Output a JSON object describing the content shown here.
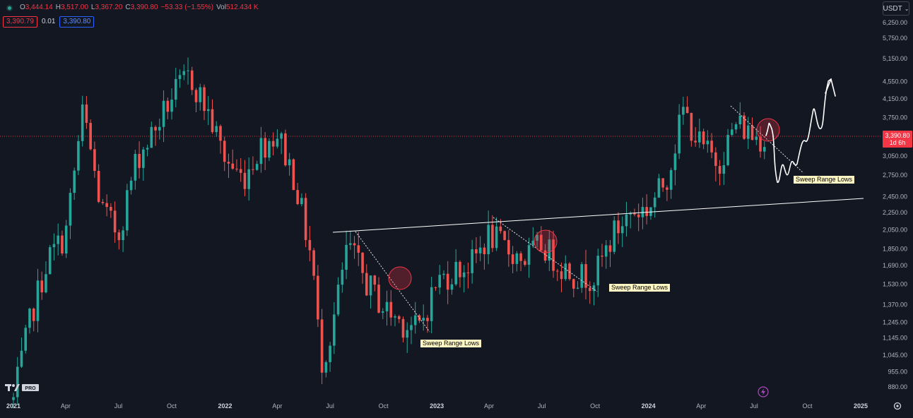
{
  "legend": {
    "open_label": "O",
    "open": "3,444.14",
    "high_label": "H",
    "high": "3,517.00",
    "low_label": "L",
    "low": "3,367.20",
    "close_label": "C",
    "close": "3,390.80",
    "change": "−53.33 (−1.55%)",
    "vol_label": "Vol",
    "volume": "512.434 K"
  },
  "chips": {
    "sell": "3,390.79",
    "spread": "0.01",
    "buy": "3,390.80"
  },
  "currency": "USDT",
  "price_tag": {
    "price": "3,390.80",
    "countdown": "1d 6h"
  },
  "annotations": [
    "Sweep Range Lows",
    "Sweep Range Lows",
    "Sweep Range Lows"
  ],
  "colors": {
    "background": "#131722",
    "up": "#26a69a",
    "down": "#ef5350",
    "price_line": "#f23645",
    "annotation_bg": "#fff8c4"
  },
  "chart_data": {
    "type": "candlestick",
    "interval": "weekly",
    "price_scale": "log",
    "y_ticks": [
      880,
      955,
      1045,
      1145,
      1245,
      1370,
      1530,
      1690,
      1850,
      2050,
      2250,
      2450,
      2750,
      3050,
      3750,
      4150,
      4550,
      5150,
      5750,
      6250
    ],
    "y_tick_labels": [
      "880.00",
      "955.00",
      "1,045.00",
      "1,145.00",
      "1,245.00",
      "1,370.00",
      "1,530.00",
      "1,690.00",
      "1,850.00",
      "2,050.00",
      "2,250.00",
      "2,450.00",
      "2,750.00",
      "3,050.00",
      "3,750.00",
      "4,150.00",
      "4,550.00",
      "5,150.00",
      "5,750.00",
      "6,250.00"
    ],
    "x_ticks": [
      {
        "label": "2021",
        "date": "2021-01"
      },
      {
        "label": "Apr",
        "date": "2021-04"
      },
      {
        "label": "Jul",
        "date": "2021-07"
      },
      {
        "label": "Oct",
        "date": "2021-10"
      },
      {
        "label": "2022",
        "date": "2022-01"
      },
      {
        "label": "Apr",
        "date": "2022-04"
      },
      {
        "label": "Jul",
        "date": "2022-07"
      },
      {
        "label": "Oct",
        "date": "2022-10"
      },
      {
        "label": "2023",
        "date": "2023-01"
      },
      {
        "label": "Apr",
        "date": "2023-04"
      },
      {
        "label": "Jul",
        "date": "2023-07"
      },
      {
        "label": "Oct",
        "date": "2023-10"
      },
      {
        "label": "2024",
        "date": "2024-01"
      },
      {
        "label": "Apr",
        "date": "2024-04"
      },
      {
        "label": "Jul",
        "date": "2024-07"
      },
      {
        "label": "Oct",
        "date": "2024-10"
      },
      {
        "label": "2025",
        "date": "2025-01"
      }
    ],
    "path": [
      [
        "2021-01",
        820
      ],
      [
        "2021-02",
        1300
      ],
      [
        "2021-03",
        1750
      ],
      [
        "2021-04",
        2000
      ],
      [
        "2021-05",
        3900
      ],
      [
        "2021-06",
        2300
      ],
      [
        "2021-07",
        2000
      ],
      [
        "2021-08",
        3000
      ],
      [
        "2021-09",
        3500
      ],
      [
        "2021-10",
        4200
      ],
      [
        "2021-11",
        4700
      ],
      [
        "2021-12",
        3900
      ],
      [
        "2022-01",
        3000
      ],
      [
        "2022-02",
        2700
      ],
      [
        "2022-03",
        3200
      ],
      [
        "2022-04",
        3450
      ],
      [
        "2022-05",
        2700
      ],
      [
        "2022-06",
        1700
      ],
      [
        "2022-06-15",
        1000
      ],
      [
        "2022-07",
        1150
      ],
      [
        "2022-08",
        1900
      ],
      [
        "2022-09",
        1550
      ],
      [
        "2022-10",
        1350
      ],
      [
        "2022-11",
        1250
      ],
      [
        "2022-12",
        1200
      ],
      [
        "2023-01",
        1550
      ],
      [
        "2023-02",
        1650
      ],
      [
        "2023-03",
        1700
      ],
      [
        "2023-04",
        2000
      ],
      [
        "2023-05",
        1850
      ],
      [
        "2023-06",
        1750
      ],
      [
        "2023-07",
        1900
      ],
      [
        "2023-08",
        1700
      ],
      [
        "2023-09",
        1600
      ],
      [
        "2023-10",
        1600
      ],
      [
        "2023-11",
        2000
      ],
      [
        "2023-12",
        2250
      ],
      [
        "2024-01",
        2300
      ],
      [
        "2024-02",
        2700
      ],
      [
        "2024-03",
        3900
      ],
      [
        "2024-04",
        3200
      ],
      [
        "2024-05",
        2950
      ],
      [
        "2024-06",
        3650
      ],
      [
        "2024-07",
        3390
      ]
    ],
    "last_price": 3390.8
  }
}
